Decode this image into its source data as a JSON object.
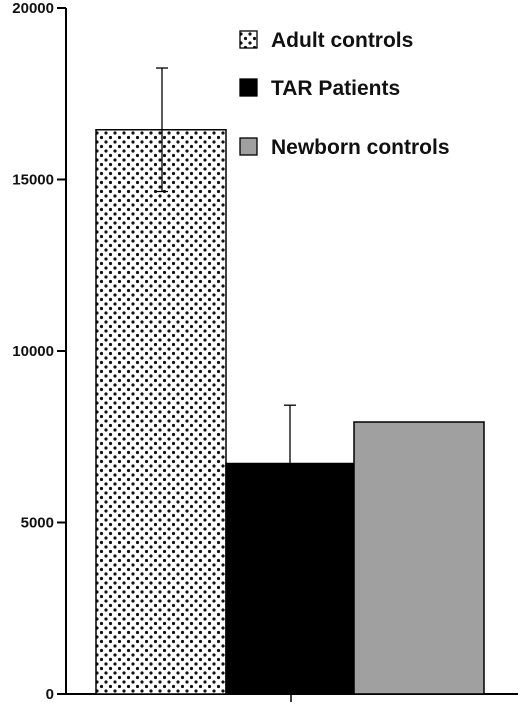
{
  "chart_data": {
    "type": "bar",
    "title": "",
    "xlabel": "",
    "ylabel": "",
    "ylim": [
      0,
      20000
    ],
    "yticks": [
      0,
      5000,
      10000,
      15000,
      20000
    ],
    "grid": false,
    "legend_position": "top-right",
    "series": [
      {
        "name": "Adult controls",
        "value": 16450,
        "error": 1800,
        "pattern": "dotted",
        "color": "#ffffff",
        "dot_color": "#111111"
      },
      {
        "name": "TAR Patients",
        "value": 6720,
        "error": 1700,
        "pattern": "solid",
        "color": "#000000"
      },
      {
        "name": "Newborn controls",
        "value": 7930,
        "error": null,
        "pattern": "solid",
        "color": "#a0a0a0"
      }
    ]
  }
}
